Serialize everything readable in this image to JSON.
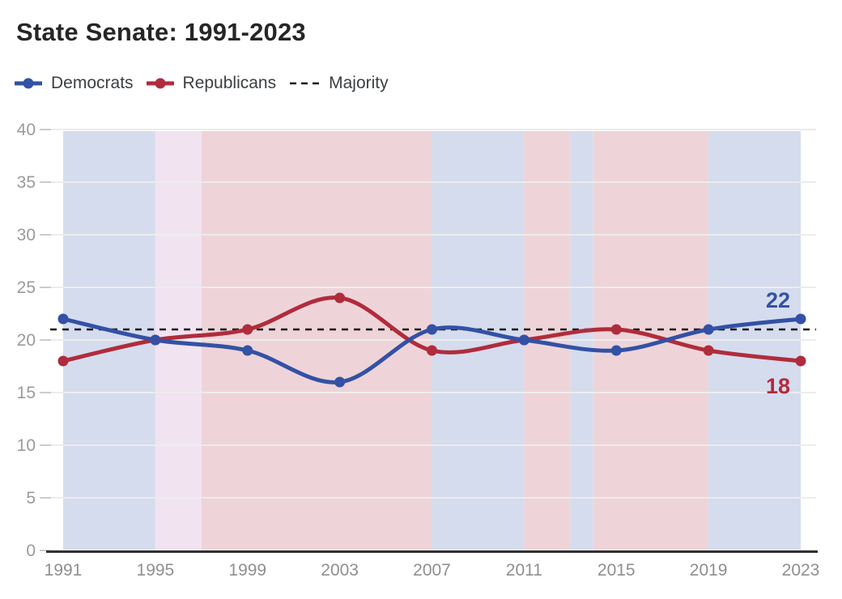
{
  "header": {
    "title": "State Senate: 1991-2023"
  },
  "legend": [
    {
      "label": "Democrats",
      "swatch": "line-dot",
      "color": "#3351a5"
    },
    {
      "label": "Republicans",
      "swatch": "line-dot",
      "color": "#b02c3c"
    },
    {
      "label": "Majority",
      "swatch": "dashed",
      "color": "#141414"
    }
  ],
  "chart_data": {
    "type": "line",
    "title": "State Senate: 1991-2023",
    "curve": "smooth",
    "grid": true,
    "x": [
      1991,
      1995,
      1999,
      2003,
      2007,
      2011,
      2015,
      2019,
      2023
    ],
    "xlim": [
      1991,
      2023
    ],
    "ylim": [
      0,
      40
    ],
    "y_ticks": [
      0,
      5,
      10,
      15,
      20,
      25,
      30,
      35,
      40
    ],
    "series": [
      {
        "name": "Republicans",
        "color": "#b02c3c",
        "values": [
          18,
          20,
          21,
          24,
          19,
          20,
          21,
          19,
          18
        ],
        "end_label": "18",
        "end_label_position": "below"
      },
      {
        "name": "Democrats",
        "color": "#3351a5",
        "values": [
          22,
          20,
          19,
          16,
          21,
          20,
          19,
          21,
          22
        ],
        "end_label": "22",
        "end_label_position": "above"
      }
    ],
    "majority_line": {
      "value": 21,
      "label": "Majority",
      "style": "dashed",
      "color": "#141414"
    },
    "majority_bands": [
      {
        "start": 1991,
        "end": 1995,
        "party": "Democrats",
        "color": "#d5dcee"
      },
      {
        "start": 1995,
        "end": 1997,
        "party": "Tie",
        "color": "#f2e3f1"
      },
      {
        "start": 1997,
        "end": 2007,
        "party": "Republicans",
        "color": "#eed4d8"
      },
      {
        "start": 2007,
        "end": 2011,
        "party": "Democrats",
        "color": "#d5dcee"
      },
      {
        "start": 2011,
        "end": 2013,
        "party": "Republicans",
        "color": "#eed4d8"
      },
      {
        "start": 2013,
        "end": 2014,
        "party": "Democrats",
        "color": "#d5dcee"
      },
      {
        "start": 2014,
        "end": 2019,
        "party": "Republicans",
        "color": "#eed4d8"
      },
      {
        "start": 2019,
        "end": 2023,
        "party": "Democrats",
        "color": "#d5dcee"
      }
    ],
    "colors": {
      "gridline": "#ececec",
      "axis_line": "#303030",
      "x_tick_text": "#8f8f8f",
      "y_tick_text": "#9b9b9b"
    }
  }
}
